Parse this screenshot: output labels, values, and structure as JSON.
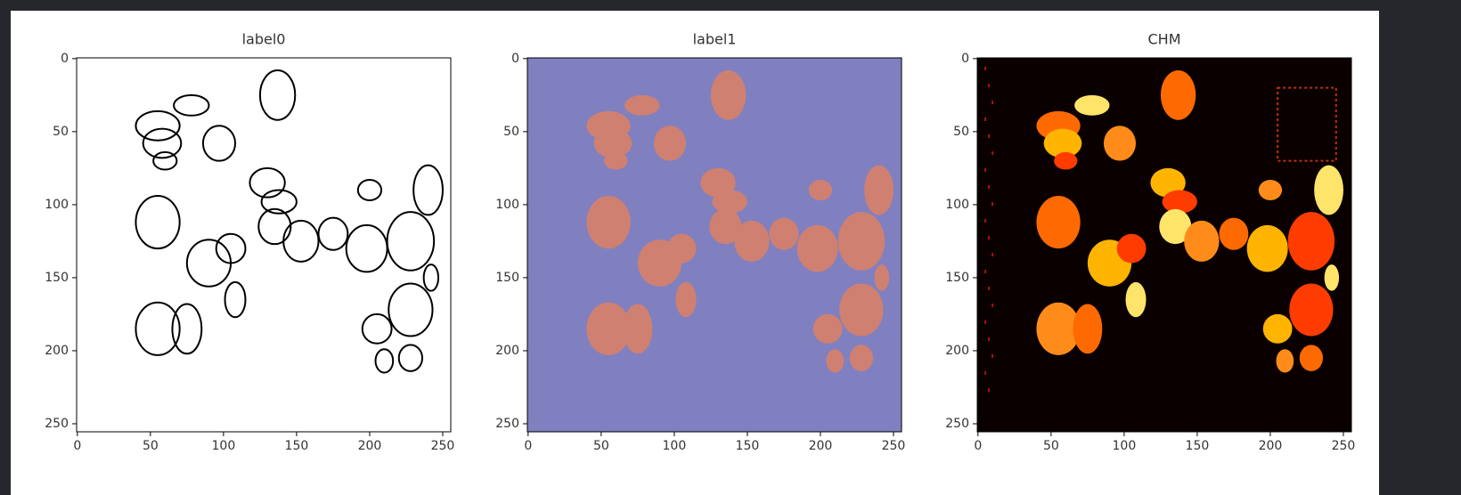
{
  "chart_data": [
    {
      "type": "image",
      "title": "label0",
      "xlim": [
        -0.5,
        255.5
      ],
      "ylim": [
        255.5,
        -0.5
      ],
      "xticks": [
        0,
        50,
        100,
        150,
        200,
        250
      ],
      "yticks": [
        0,
        50,
        100,
        150,
        200,
        250
      ]
    },
    {
      "type": "image",
      "title": "label1",
      "xlim": [
        -0.5,
        255.5
      ],
      "ylim": [
        255.5,
        -0.5
      ],
      "xticks": [
        0,
        50,
        100,
        150,
        200,
        250
      ],
      "yticks": [
        0,
        50,
        100,
        150,
        200,
        250
      ]
    },
    {
      "type": "image",
      "title": "CHM",
      "xlim": [
        -0.5,
        255.5
      ],
      "ylim": [
        255.5,
        -0.5
      ],
      "xticks": [
        0,
        50,
        100,
        150,
        200,
        250
      ],
      "yticks": [
        0,
        50,
        100,
        150,
        200,
        250
      ]
    }
  ]
}
